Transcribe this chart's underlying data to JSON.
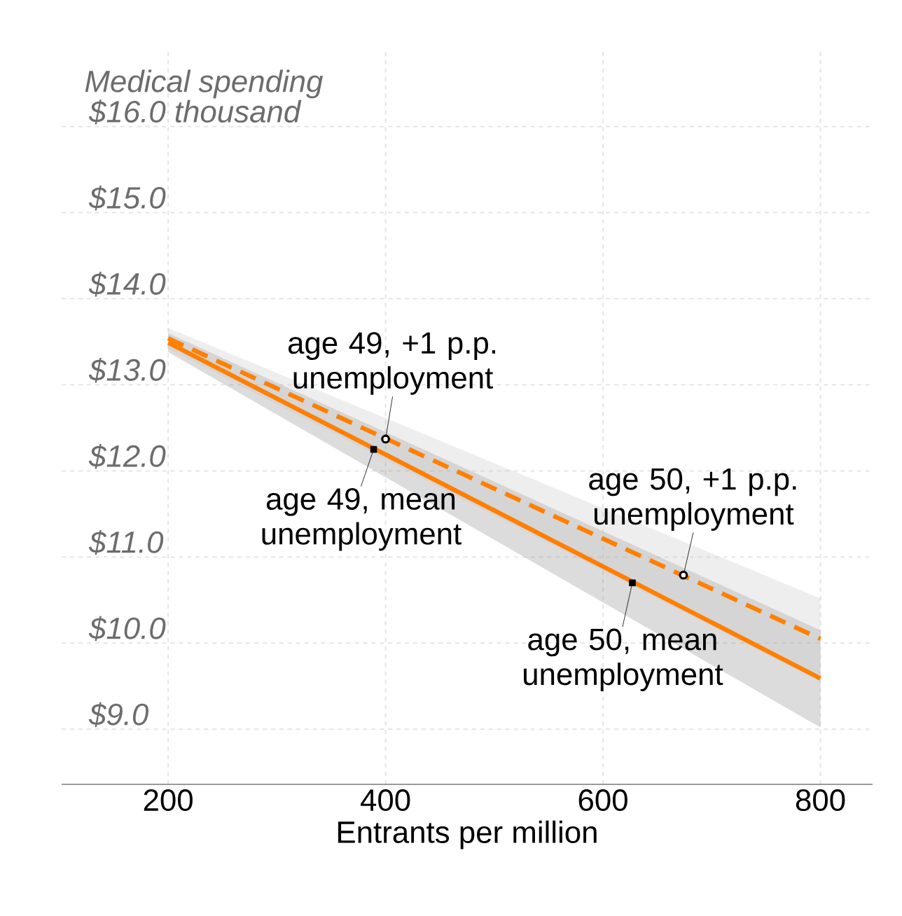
{
  "chart_data": {
    "type": "line",
    "ylabel": "Medical spending",
    "xlabel": "Entrants per million",
    "x": [
      200,
      800
    ],
    "series": [
      {
        "color": "#ff7f00",
        "line_style": "solid",
        "values": [
          13.49,
          9.59
        ],
        "lower": [
          13.38,
          9.02
        ],
        "upper": [
          13.6,
          10.15
        ]
      },
      {
        "color": "#ff7f00",
        "line_style": "dashed",
        "values": [
          13.54,
          10.05
        ],
        "lower": [
          13.42,
          9.55
        ],
        "upper": [
          13.66,
          10.52
        ]
      },
      {
        "type": "scatter",
        "marker": "square",
        "color": "#000000",
        "x": [
          389,
          627
        ],
        "values": [
          12.25,
          10.7
        ]
      },
      {
        "type": "scatter",
        "marker": "circle",
        "color": "#000000",
        "x": [
          400,
          674
        ],
        "values": [
          12.37,
          10.79
        ]
      }
    ],
    "xlim": [
      102,
      848
    ],
    "ylim": [
      8.36,
      16.9
    ],
    "xticks": [
      200,
      400,
      600,
      800
    ],
    "yticks": [
      {
        "value": 9,
        "label": "$9.0"
      },
      {
        "value": 10,
        "label": "$10.0"
      },
      {
        "value": 11,
        "label": "$11.0"
      },
      {
        "value": 12,
        "label": "$12.0"
      },
      {
        "value": 13,
        "label": "$13.0"
      },
      {
        "value": 14,
        "label": "$14.0"
      },
      {
        "value": 15,
        "label": "$15.0"
      },
      {
        "value": 16,
        "label": "$16.0 thousand"
      }
    ],
    "grid": true,
    "annotations": [
      {
        "text": "age 49, +1 p.p. unemployment",
        "x": 400,
        "y": 12.37
      },
      {
        "text": "age 49, mean unemployment",
        "x": 389,
        "y": 12.25
      },
      {
        "text": "age 50, +1 p.p. unemployment",
        "x": 674,
        "y": 10.79
      },
      {
        "text": "age 50, mean unemployment",
        "x": 627,
        "y": 10.7
      }
    ]
  }
}
